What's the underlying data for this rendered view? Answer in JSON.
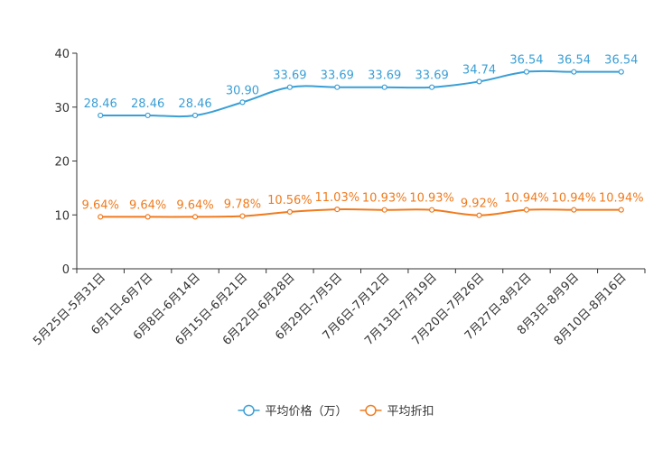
{
  "chart_data": {
    "type": "line",
    "categories": [
      "5月25日-5月31日",
      "6月1日-6月7日",
      "6月8日-6月14日",
      "6月15日-6月21日",
      "6月22日-6月28日",
      "6月29日-7月5日",
      "7月6日-7月12日",
      "7月13日-7月19日",
      "7月20日-7月26日",
      "7月27日-8月2日",
      "8月3日-8月9日",
      "8月10日-8月16日"
    ],
    "ylim": [
      0,
      40
    ],
    "yticks": [
      "0",
      "10",
      "20",
      "30",
      "40"
    ],
    "series": [
      {
        "name": "平均价格（万）",
        "color": "#3a9fd6",
        "values": [
          28.46,
          28.46,
          28.46,
          30.9,
          33.69,
          33.69,
          33.69,
          33.69,
          34.74,
          36.54,
          36.54,
          36.54
        ],
        "labels": [
          "28.46",
          "28.46",
          "28.46",
          "30.90",
          "33.69",
          "33.69",
          "33.69",
          "33.69",
          "34.74",
          "36.54",
          "36.54",
          "36.54"
        ]
      },
      {
        "name": "平均折扣",
        "color": "#f07b1e",
        "values": [
          9.64,
          9.64,
          9.64,
          9.78,
          10.56,
          11.03,
          10.93,
          10.93,
          9.92,
          10.94,
          10.94,
          10.94
        ],
        "labels": [
          "9.64%",
          "9.64%",
          "9.64%",
          "9.78%",
          "10.56%",
          "11.03%",
          "10.93%",
          "10.93%",
          "9.92%",
          "10.94%",
          "10.94%",
          "10.94%"
        ]
      }
    ],
    "legend_position": "bottom-center",
    "grid": false,
    "title": "",
    "xlabel": "",
    "ylabel": ""
  }
}
